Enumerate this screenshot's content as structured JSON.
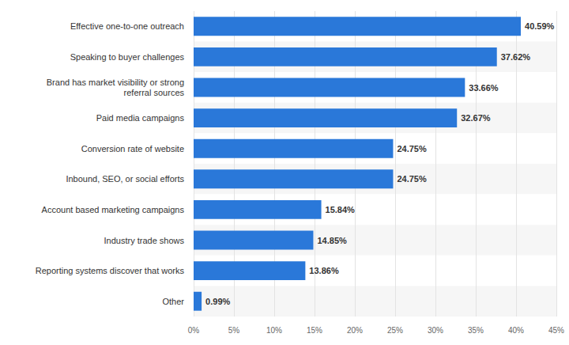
{
  "chart_data": {
    "type": "bar",
    "orientation": "horizontal",
    "categories": [
      "Effective one-to-one outreach",
      "Speaking to buyer challenges",
      "Brand has market visibility or strong\nreferral sources",
      "Paid media campaigns",
      "Conversion rate of website",
      "Inbound, SEO, or social efforts",
      "Account based marketing campaigns",
      "Industry trade shows",
      "Reporting systems discover that works",
      "Other"
    ],
    "values": [
      40.59,
      37.62,
      33.66,
      32.67,
      24.75,
      24.75,
      15.84,
      14.85,
      13.86,
      0.99
    ],
    "value_labels": [
      "40.59%",
      "37.62%",
      "33.66%",
      "32.67%",
      "24.75%",
      "24.75%",
      "15.84%",
      "14.85%",
      "13.86%",
      "0.99%"
    ],
    "data_labels": true,
    "color": "#2a78d9",
    "xlim": [
      0,
      45
    ],
    "xticks": [
      {
        "value": 0,
        "label": "0%"
      },
      {
        "value": 5,
        "label": "5%"
      },
      {
        "value": 10,
        "label": "10%"
      },
      {
        "value": 15,
        "label": "15%"
      },
      {
        "value": 20,
        "label": "20%"
      },
      {
        "value": 25,
        "label": "25%"
      },
      {
        "value": 30,
        "label": "30%"
      },
      {
        "value": 35,
        "label": "35%"
      },
      {
        "value": 40,
        "label": "40%"
      },
      {
        "value": 45,
        "label": "45%"
      }
    ],
    "grid": true
  }
}
